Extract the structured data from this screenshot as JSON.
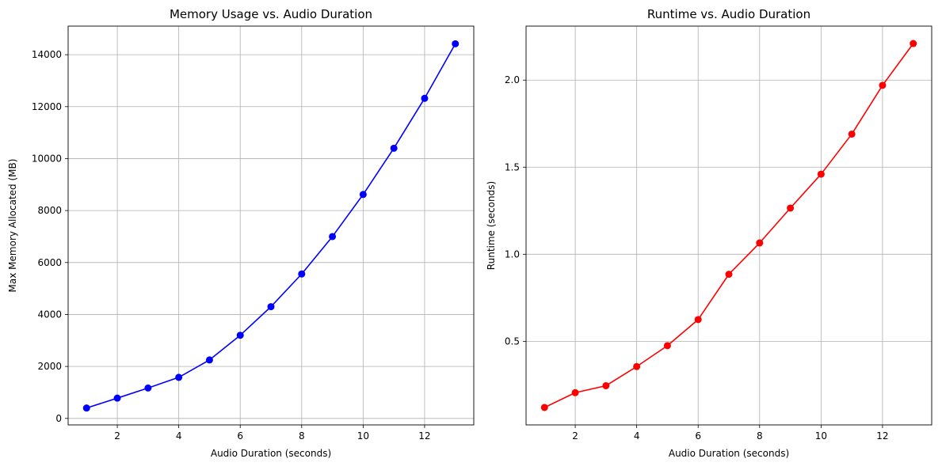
{
  "chart_data": [
    {
      "type": "line",
      "title": "Memory Usage vs. Audio Duration",
      "xlabel": "Audio Duration (seconds)",
      "ylabel": "Max Memory Allocated (MB)",
      "xlim": [
        0.4,
        13.6
      ],
      "ylim": [
        -250,
        15100
      ],
      "xticks": [
        2,
        4,
        6,
        8,
        10,
        12
      ],
      "yticks": [
        0,
        2000,
        4000,
        6000,
        8000,
        10000,
        12000,
        14000
      ],
      "grid": true,
      "marker": "circle",
      "series": [
        {
          "color": "#0000ff",
          "x": [
            1,
            2,
            3,
            4,
            5,
            6,
            7,
            8,
            9,
            10,
            11,
            12,
            13
          ],
          "y": [
            400,
            780,
            1170,
            1580,
            2250,
            3200,
            4300,
            5560,
            7000,
            8620,
            10400,
            12320,
            14420
          ]
        }
      ]
    },
    {
      "type": "line",
      "title": "Runtime vs. Audio Duration",
      "xlabel": "Audio Duration (seconds)",
      "ylabel": "Runtime (seconds)",
      "xlim": [
        0.4,
        13.6
      ],
      "ylim": [
        0.02,
        2.31
      ],
      "xticks": [
        2,
        4,
        6,
        8,
        10,
        12
      ],
      "yticks": [
        0.5,
        1.0,
        1.5,
        2.0
      ],
      "grid": true,
      "marker": "circle",
      "series": [
        {
          "color": "#ff0000",
          "x": [
            1,
            2,
            3,
            4,
            5,
            6,
            7,
            8,
            9,
            10,
            11,
            12,
            13
          ],
          "y": [
            0.12,
            0.205,
            0.245,
            0.355,
            0.475,
            0.625,
            0.885,
            1.065,
            1.265,
            1.46,
            1.69,
            1.97,
            2.21
          ]
        }
      ]
    }
  ]
}
